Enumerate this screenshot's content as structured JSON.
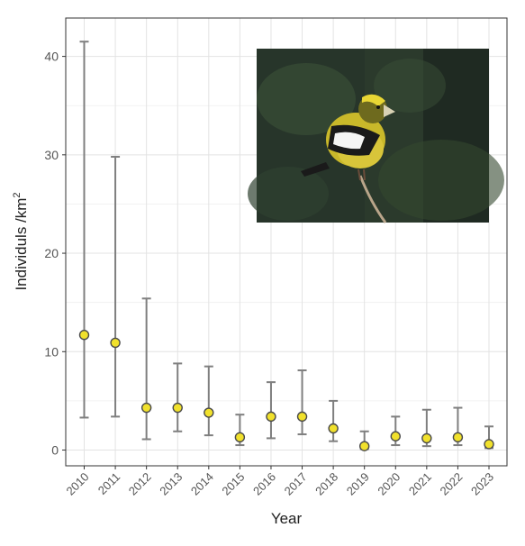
{
  "chart_data": {
    "type": "scatter",
    "error_bars": true,
    "xlabel": "Year",
    "ylabel": "Individuls /km",
    "ylabel_superscript": "2",
    "ylim": [
      -1.6,
      43.9
    ],
    "yticks": [
      0,
      10,
      20,
      30,
      40
    ],
    "grid": true,
    "point_color": "#f1e12c",
    "errorbar_color": "#7f7f7f",
    "categories": [
      "2010",
      "2011",
      "2012",
      "2013",
      "2014",
      "2015",
      "2016",
      "2017",
      "2018",
      "2019",
      "2020",
      "2021",
      "2022",
      "2023"
    ],
    "values": [
      11.7,
      10.9,
      4.3,
      4.3,
      3.8,
      1.3,
      3.4,
      3.4,
      2.2,
      0.4,
      1.4,
      1.2,
      1.3,
      0.6
    ],
    "lower": [
      3.3,
      3.4,
      1.1,
      1.9,
      1.5,
      0.5,
      1.2,
      1.6,
      0.9,
      0.1,
      0.5,
      0.4,
      0.5,
      0.2
    ],
    "upper": [
      41.5,
      29.8,
      15.4,
      8.8,
      8.5,
      3.6,
      6.9,
      8.1,
      5.0,
      1.9,
      3.4,
      4.1,
      4.3,
      2.4
    ]
  },
  "inset_photo": {
    "subject": "bird-photo",
    "colors": {
      "background": "#2b3a2c",
      "plumage": "#c9b82a",
      "wing": "#1a1a1a",
      "wing_patch": "#f4f4f4"
    }
  }
}
